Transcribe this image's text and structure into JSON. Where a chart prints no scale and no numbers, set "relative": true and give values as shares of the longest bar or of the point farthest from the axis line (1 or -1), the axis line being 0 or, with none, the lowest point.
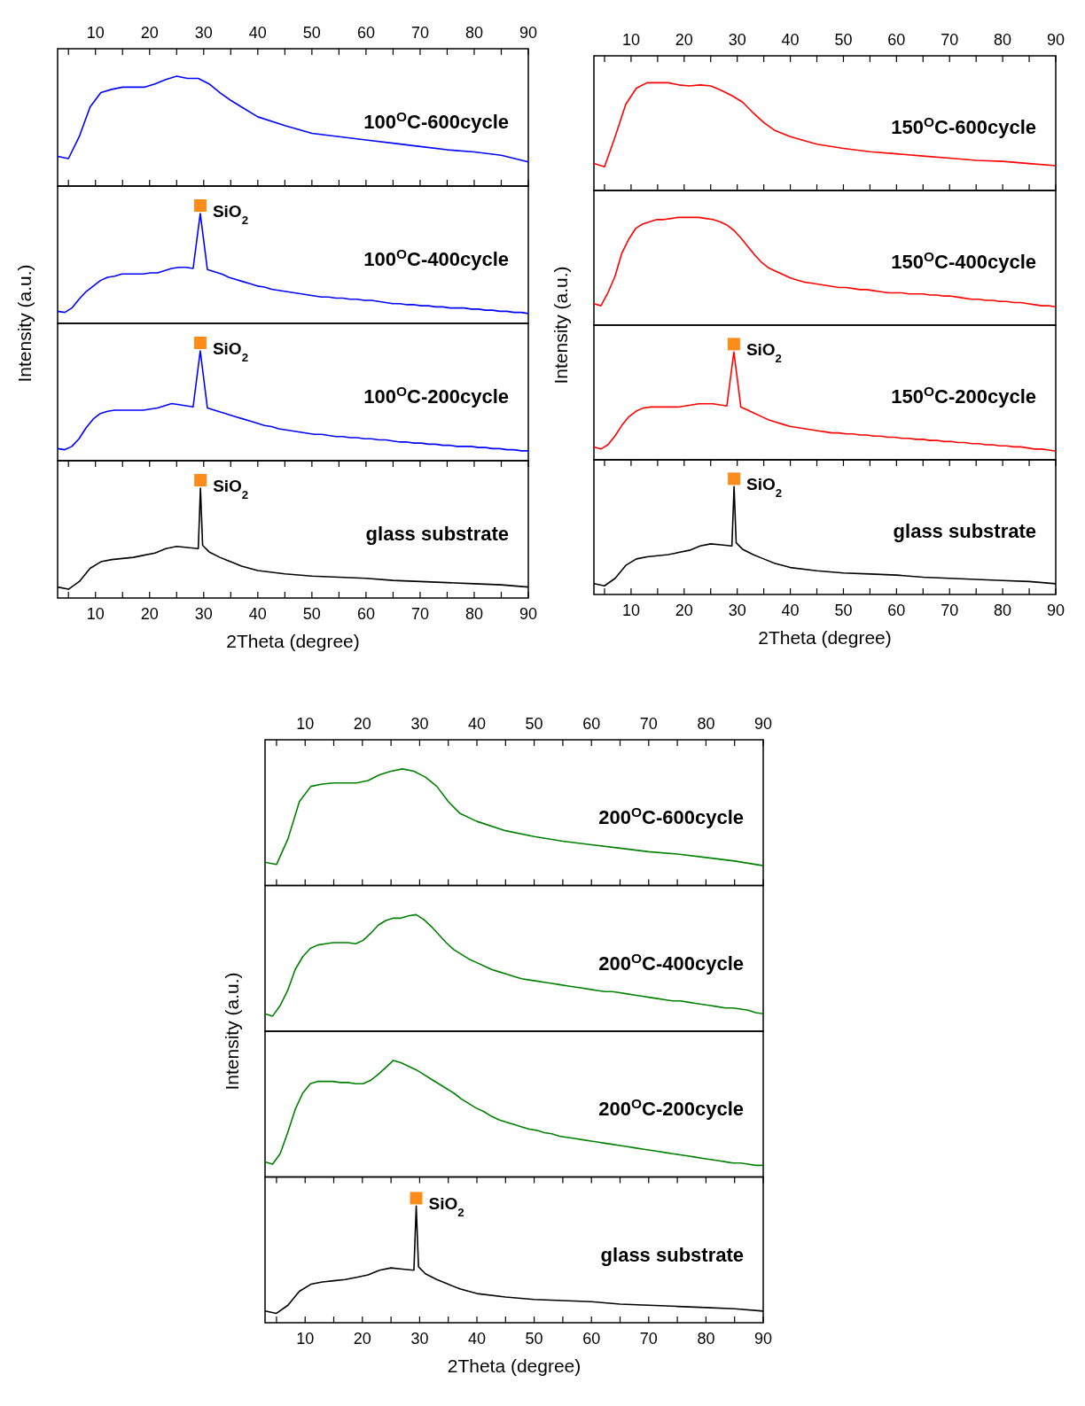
{
  "chart_data": [
    {
      "type": "line",
      "relative": true,
      "xlim": [
        3,
        90
      ],
      "xticks": [
        {
          "value": 5,
          "label": null
        },
        10,
        {
          "value": 15,
          "label": null
        },
        20,
        {
          "value": 25,
          "label": null
        },
        30,
        {
          "value": 35,
          "label": null
        },
        40,
        {
          "value": 45,
          "label": null
        },
        50,
        {
          "value": 55,
          "label": null
        },
        60,
        {
          "value": 65,
          "label": null
        },
        70,
        {
          "value": 75,
          "label": null
        },
        80,
        {
          "value": 85,
          "label": null
        },
        90
      ],
      "x": [
        3,
        5,
        7,
        9,
        11,
        13,
        15,
        17,
        19,
        21,
        23,
        25,
        27,
        29,
        31,
        33,
        35,
        37,
        40,
        45,
        50,
        55,
        60,
        65,
        70,
        75,
        80,
        85,
        90
      ],
      "series": [
        {
          "name": "100$^{O}$C-600cycle",
          "color": "#0000ff",
          "values": [
            0.27,
            0.25,
            0.45,
            0.72,
            0.85,
            0.88,
            0.9,
            0.9,
            0.9,
            0.93,
            0.97,
            1.0,
            0.98,
            0.98,
            0.93,
            0.85,
            0.78,
            0.72,
            0.63,
            0.55,
            0.48,
            0.45,
            0.42,
            0.39,
            0.36,
            0.33,
            0.31,
            0.28,
            0.22
          ]
        }
      ]
    },
    {
      "type": "line",
      "relative": true,
      "ylabel": "Intensity (a.u.)",
      "categories": [
        null,
        null,
        null,
        null,
        null,
        null,
        null,
        null,
        null,
        null,
        null,
        null,
        null,
        null,
        null,
        null,
        null,
        null,
        null,
        null,
        null,
        null,
        null,
        null,
        null,
        null,
        null,
        null,
        null,
        null,
        null,
        null,
        null,
        null,
        null,
        null,
        null,
        null,
        null,
        null,
        null,
        null,
        null,
        null,
        null,
        null,
        null,
        null,
        null,
        null,
        null,
        null,
        null,
        null,
        null,
        null,
        null,
        null,
        null,
        null,
        null,
        null,
        null,
        null,
        null,
        null,
        null
      ],
      "series": [
        {
          "name": "100$^{O}$C-400cycle",
          "color": "#0000ff",
          "values": [
            0.11,
            0.1,
            0.14,
            0.22,
            0.29,
            0.34,
            0.39,
            0.42,
            0.43,
            0.45,
            0.45,
            0.45,
            0.45,
            0.46,
            0.46,
            0.48,
            0.5,
            0.51,
            0.51,
            0.5,
            1,
            0.49,
            0.47,
            0.45,
            0.42,
            0.4,
            0.38,
            0.36,
            0.34,
            0.33,
            0.31,
            0.3,
            0.29,
            0.28,
            0.27,
            0.26,
            0.25,
            0.24,
            0.24,
            0.23,
            0.23,
            0.22,
            0.22,
            0.21,
            0.21,
            0.2,
            0.19,
            0.18,
            0.18,
            0.17,
            0.17,
            0.16,
            0.16,
            0.15,
            0.15,
            0.14,
            0.14,
            0.14,
            0.13,
            0.13,
            0.12,
            0.12,
            0.11,
            0.11,
            0.1,
            0.1,
            0.09
          ]
        }
      ],
      "annotations": [
        "SiO$_{2}$"
      ]
    },
    {
      "type": "line",
      "relative": true,
      "categories": [
        null,
        null,
        null,
        null,
        null,
        null,
        null,
        null,
        null,
        null,
        null,
        null,
        null,
        null,
        null,
        null,
        null,
        null,
        null,
        null,
        null,
        null,
        null,
        null,
        null,
        null,
        null,
        null,
        null,
        null,
        null,
        null,
        null,
        null,
        null,
        null,
        null,
        null,
        null,
        null,
        null,
        null,
        null,
        null,
        null,
        null,
        null,
        null,
        null,
        null,
        null,
        null,
        null,
        null,
        null,
        null,
        null,
        null,
        null,
        null,
        null,
        null,
        null,
        null,
        null,
        null,
        null
      ],
      "series": [
        {
          "name": "100$^{O}$C-200cycle",
          "color": "#0000ff",
          "values": [
            0.11,
            0.1,
            0.13,
            0.2,
            0.3,
            0.38,
            0.43,
            0.45,
            0.46,
            0.46,
            0.46,
            0.46,
            0.46,
            0.47,
            0.48,
            0.5,
            0.52,
            0.51,
            0.5,
            0.49,
            1,
            0.48,
            0.46,
            0.44,
            0.42,
            0.4,
            0.38,
            0.36,
            0.34,
            0.32,
            0.31,
            0.29,
            0.28,
            0.27,
            0.26,
            0.25,
            0.24,
            0.24,
            0.23,
            0.22,
            0.22,
            0.21,
            0.21,
            0.2,
            0.2,
            0.19,
            0.19,
            0.18,
            0.17,
            0.17,
            0.16,
            0.16,
            0.15,
            0.15,
            0.14,
            0.14,
            0.13,
            0.13,
            0.13,
            0.12,
            0.12,
            0.11,
            0.11,
            0.1,
            0.1,
            0.09,
            0.09
          ]
        }
      ],
      "annotations": [
        "SiO$_{2}$"
      ]
    },
    {
      "type": "line",
      "relative": true,
      "xlim": [
        3,
        90
      ],
      "xticks": [
        {
          "value": 5,
          "label": null
        },
        10,
        {
          "value": 15,
          "label": null
        },
        20,
        {
          "value": 25,
          "label": null
        },
        30,
        {
          "value": 35,
          "label": null
        },
        40,
        {
          "value": 45,
          "label": null
        },
        50,
        {
          "value": 55,
          "label": null
        },
        60,
        {
          "value": 65,
          "label": null
        },
        70,
        {
          "value": 75,
          "label": null
        },
        80,
        {
          "value": 85,
          "label": null
        },
        90
      ],
      "xlabel": "2Theta (degree)",
      "x": [
        3,
        5,
        7,
        9,
        11,
        13,
        15,
        17,
        19,
        21,
        23,
        25,
        27,
        29,
        29.4,
        29.8,
        31,
        33,
        35,
        37,
        40,
        45,
        50,
        55,
        60,
        65,
        70,
        75,
        80,
        85,
        90
      ],
      "series": [
        {
          "name": "glass substrate",
          "color": "#000000",
          "values": [
            0.1,
            0.08,
            0.15,
            0.27,
            0.33,
            0.35,
            0.36,
            0.37,
            0.39,
            0.41,
            0.45,
            0.47,
            0.46,
            0.45,
            1,
            0.48,
            0.42,
            0.37,
            0.33,
            0.29,
            0.25,
            0.22,
            0.2,
            0.19,
            0.18,
            0.16,
            0.15,
            0.14,
            0.13,
            0.12,
            0.1
          ]
        }
      ],
      "annotations": [
        "SiO$_{2}$"
      ]
    },
    {
      "type": "line",
      "relative": true,
      "xlim": [
        3,
        90
      ],
      "xticks": [
        {
          "value": 5,
          "label": null
        },
        10,
        {
          "value": 15,
          "label": null
        },
        20,
        {
          "value": 25,
          "label": null
        },
        30,
        {
          "value": 35,
          "label": null
        },
        40,
        {
          "value": 45,
          "label": null
        },
        50,
        {
          "value": 55,
          "label": null
        },
        60,
        {
          "value": 65,
          "label": null
        },
        70,
        {
          "value": 75,
          "label": null
        },
        80,
        {
          "value": 85,
          "label": null
        },
        90
      ],
      "x": [
        3,
        5,
        7,
        9,
        11,
        13,
        15,
        17,
        19,
        21,
        23,
        25,
        27,
        29,
        31,
        33,
        35,
        37,
        40,
        45,
        50,
        55,
        60,
        65,
        70,
        75,
        80,
        85,
        90
      ],
      "series": [
        {
          "name": "150$^{O}$C-600cycle",
          "color": "#ff0000",
          "values": [
            0.25,
            0.22,
            0.5,
            0.8,
            0.95,
            1,
            1,
            1,
            0.98,
            0.97,
            0.98,
            0.97,
            0.93,
            0.88,
            0.82,
            0.72,
            0.63,
            0.56,
            0.5,
            0.43,
            0.39,
            0.36,
            0.34,
            0.32,
            0.3,
            0.28,
            0.27,
            0.25,
            0.23
          ]
        }
      ]
    },
    {
      "type": "line",
      "relative": true,
      "ylabel": "Intensity (a.u.)",
      "categories": [
        null,
        null,
        null,
        null,
        null,
        null,
        null,
        null,
        null,
        null,
        null,
        null,
        null,
        null,
        null,
        null,
        null,
        null,
        null,
        null,
        null,
        null,
        null,
        null,
        null,
        null,
        null,
        null,
        null,
        null,
        null,
        null,
        null,
        null,
        null,
        null,
        null,
        null,
        null,
        null,
        null,
        null,
        null,
        null,
        null,
        null,
        null,
        null,
        null,
        null,
        null,
        null,
        null,
        null,
        null,
        null,
        null,
        null,
        null,
        null,
        null,
        null,
        null,
        null,
        null,
        null,
        null
      ],
      "series": [
        {
          "name": "150$^{O}$C-400cycle",
          "color": "#ff0000",
          "values": [
            0.2,
            0.18,
            0.3,
            0.45,
            0.67,
            0.8,
            0.9,
            0.94,
            0.96,
            0.98,
            0.98,
            0.99,
            1,
            1,
            1,
            1,
            0.99,
            0.98,
            0.96,
            0.93,
            0.88,
            0.81,
            0.73,
            0.65,
            0.58,
            0.53,
            0.5,
            0.47,
            0.44,
            0.42,
            0.4,
            0.39,
            0.38,
            0.37,
            0.36,
            0.35,
            0.35,
            0.34,
            0.33,
            0.33,
            0.32,
            0.31,
            0.3,
            0.3,
            0.3,
            0.29,
            0.29,
            0.29,
            0.28,
            0.28,
            0.27,
            0.27,
            0.26,
            0.25,
            0.24,
            0.24,
            0.23,
            0.23,
            0.22,
            0.22,
            0.21,
            0.21,
            0.2,
            0.19,
            0.18,
            0.18,
            0.17
          ]
        }
      ]
    },
    {
      "type": "line",
      "relative": true,
      "categories": [
        null,
        null,
        null,
        null,
        null,
        null,
        null,
        null,
        null,
        null,
        null,
        null,
        null,
        null,
        null,
        null,
        null,
        null,
        null,
        null,
        null,
        null,
        null,
        null,
        null,
        null,
        null,
        null,
        null,
        null,
        null,
        null,
        null,
        null,
        null,
        null,
        null,
        null,
        null,
        null,
        null,
        null,
        null,
        null,
        null,
        null,
        null,
        null,
        null,
        null,
        null,
        null,
        null,
        null,
        null,
        null,
        null,
        null,
        null,
        null,
        null,
        null,
        null,
        null,
        null,
        null,
        null
      ],
      "series": [
        {
          "name": "150$^{O}$C-200cycle",
          "color": "#ff0000",
          "values": [
            0.12,
            0.1,
            0.14,
            0.22,
            0.32,
            0.4,
            0.45,
            0.48,
            0.49,
            0.49,
            0.49,
            0.49,
            0.49,
            0.5,
            0.51,
            0.52,
            0.52,
            0.52,
            0.51,
            0.5,
            1,
            0.49,
            0.46,
            0.43,
            0.4,
            0.37,
            0.35,
            0.33,
            0.31,
            0.3,
            0.29,
            0.28,
            0.27,
            0.26,
            0.25,
            0.25,
            0.24,
            0.24,
            0.23,
            0.23,
            0.22,
            0.22,
            0.21,
            0.21,
            0.2,
            0.2,
            0.19,
            0.19,
            0.18,
            0.18,
            0.17,
            0.17,
            0.16,
            0.16,
            0.15,
            0.15,
            0.14,
            0.14,
            0.13,
            0.13,
            0.12,
            0.12,
            0.11,
            0.1,
            0.1,
            0.09,
            0.08
          ]
        }
      ],
      "annotations": [
        "SiO$_{2}$"
      ]
    },
    {
      "type": "line",
      "relative": true,
      "xlim": [
        3,
        90
      ],
      "xticks": [
        {
          "value": 5,
          "label": null
        },
        10,
        {
          "value": 15,
          "label": null
        },
        20,
        {
          "value": 25,
          "label": null
        },
        30,
        {
          "value": 35,
          "label": null
        },
        40,
        {
          "value": 45,
          "label": null
        },
        50,
        {
          "value": 55,
          "label": null
        },
        60,
        {
          "value": 65,
          "label": null
        },
        70,
        {
          "value": 75,
          "label": null
        },
        80,
        {
          "value": 85,
          "label": null
        },
        90
      ],
      "xlabel": "2Theta (degree)",
      "x": [
        3,
        5,
        7,
        9,
        11,
        13,
        15,
        17,
        19,
        21,
        23,
        25,
        27,
        29,
        29.4,
        29.8,
        31,
        33,
        35,
        37,
        40,
        45,
        50,
        55,
        60,
        65,
        70,
        75,
        80,
        85,
        90
      ],
      "series": [
        {
          "name": "glass substrate",
          "color": "#000000",
          "values": [
            0.1,
            0.08,
            0.15,
            0.27,
            0.33,
            0.35,
            0.36,
            0.37,
            0.39,
            0.41,
            0.45,
            0.47,
            0.46,
            0.45,
            1,
            0.48,
            0.42,
            0.37,
            0.33,
            0.29,
            0.25,
            0.22,
            0.2,
            0.19,
            0.18,
            0.16,
            0.15,
            0.14,
            0.13,
            0.12,
            0.1
          ]
        }
      ],
      "annotations": [
        "SiO$_{2}$"
      ]
    },
    {
      "type": "line",
      "relative": true,
      "xlim": [
        3,
        90
      ],
      "xticks": [
        {
          "value": 5,
          "label": null
        },
        10,
        {
          "value": 15,
          "label": null
        },
        20,
        {
          "value": 25,
          "label": null
        },
        30,
        {
          "value": 35,
          "label": null
        },
        40,
        {
          "value": 45,
          "label": null
        },
        50,
        {
          "value": 55,
          "label": null
        },
        60,
        {
          "value": 65,
          "label": null
        },
        70,
        {
          "value": 75,
          "label": null
        },
        80,
        {
          "value": 85,
          "label": null
        },
        90
      ],
      "x": [
        3,
        5,
        7,
        9,
        11,
        13,
        15,
        17,
        19,
        21,
        23,
        25,
        27,
        29,
        31,
        33,
        35,
        37,
        40,
        45,
        50,
        55,
        60,
        65,
        70,
        75,
        80,
        85,
        90
      ],
      "series": [
        {
          "name": "200$^{O}$C-600cycle",
          "color": "#008000",
          "values": [
            0.2,
            0.18,
            0.4,
            0.72,
            0.85,
            0.87,
            0.88,
            0.88,
            0.88,
            0.9,
            0.95,
            0.98,
            1,
            0.98,
            0.93,
            0.85,
            0.72,
            0.62,
            0.55,
            0.47,
            0.42,
            0.38,
            0.35,
            0.32,
            0.29,
            0.27,
            0.24,
            0.21,
            0.17
          ]
        }
      ]
    },
    {
      "type": "line",
      "relative": true,
      "ylabel": "Intensity (a.u.)",
      "categories": [
        null,
        null,
        null,
        null,
        null,
        null,
        null,
        null,
        null,
        null,
        null,
        null,
        null,
        null,
        null,
        null,
        null,
        null,
        null,
        null,
        null,
        null,
        null,
        null,
        null,
        null,
        null,
        null,
        null,
        null,
        null,
        null,
        null,
        null,
        null,
        null,
        null,
        null,
        null,
        null,
        null,
        null,
        null,
        null,
        null,
        null,
        null,
        null,
        null,
        null,
        null,
        null,
        null,
        null,
        null,
        null,
        null,
        null,
        null,
        null,
        null,
        null,
        null,
        null,
        null,
        null,
        null
      ],
      "series": [
        {
          "name": "200$^{O}$C-400cycle",
          "color": "#008000",
          "values": [
            0.15,
            0.13,
            0.22,
            0.35,
            0.53,
            0.64,
            0.71,
            0.74,
            0.75,
            0.76,
            0.76,
            0.76,
            0.75,
            0.78,
            0.84,
            0.91,
            0.95,
            0.97,
            0.97,
            0.99,
            1,
            0.96,
            0.9,
            0.83,
            0.76,
            0.7,
            0.66,
            0.62,
            0.59,
            0.56,
            0.53,
            0.51,
            0.49,
            0.47,
            0.45,
            0.44,
            0.43,
            0.42,
            0.41,
            0.4,
            0.39,
            0.38,
            0.37,
            0.36,
            0.35,
            0.34,
            0.34,
            0.33,
            0.32,
            0.31,
            0.3,
            0.29,
            0.28,
            0.27,
            0.26,
            0.26,
            0.25,
            0.24,
            0.23,
            0.22,
            0.21,
            0.2,
            0.2,
            0.19,
            0.18,
            0.16,
            0.15
          ]
        }
      ]
    },
    {
      "type": "line",
      "relative": true,
      "categories": [
        null,
        null,
        null,
        null,
        null,
        null,
        null,
        null,
        null,
        null,
        null,
        null,
        null,
        null,
        null,
        null,
        null,
        null,
        null,
        null,
        null,
        null,
        null,
        null,
        null,
        null,
        null,
        null,
        null,
        null,
        null,
        null,
        null,
        null,
        null,
        null,
        null,
        null,
        null,
        null,
        null,
        null,
        null,
        null,
        null,
        null,
        null,
        null,
        null,
        null,
        null,
        null,
        null,
        null,
        null,
        null,
        null,
        null,
        null,
        null,
        null,
        null,
        null,
        null,
        null,
        null,
        null
      ],
      "series": [
        {
          "name": "200$^{O}$C-200cycle",
          "color": "#008000",
          "values": [
            0.13,
            0.11,
            0.2,
            0.38,
            0.58,
            0.72,
            0.8,
            0.82,
            0.82,
            0.82,
            0.81,
            0.81,
            0.8,
            0.8,
            0.83,
            0.88,
            0.94,
            1,
            0.98,
            0.95,
            0.92,
            0.88,
            0.84,
            0.8,
            0.76,
            0.72,
            0.67,
            0.63,
            0.59,
            0.56,
            0.52,
            0.49,
            0.47,
            0.45,
            0.43,
            0.41,
            0.4,
            0.38,
            0.37,
            0.35,
            0.34,
            0.33,
            0.32,
            0.31,
            0.3,
            0.29,
            0.28,
            0.27,
            0.26,
            0.25,
            0.24,
            0.23,
            0.22,
            0.21,
            0.2,
            0.19,
            0.18,
            0.17,
            0.16,
            0.15,
            0.14,
            0.13,
            0.12,
            0.12,
            0.11,
            0.1,
            0.1
          ]
        }
      ]
    },
    {
      "type": "line",
      "relative": true,
      "xlim": [
        3,
        90
      ],
      "xticks": [
        {
          "value": 5,
          "label": null
        },
        10,
        {
          "value": 15,
          "label": null
        },
        20,
        {
          "value": 25,
          "label": null
        },
        30,
        {
          "value": 35,
          "label": null
        },
        40,
        {
          "value": 45,
          "label": null
        },
        50,
        {
          "value": 55,
          "label": null
        },
        60,
        {
          "value": 65,
          "label": null
        },
        70,
        {
          "value": 75,
          "label": null
        },
        80,
        {
          "value": 85,
          "label": null
        },
        90
      ],
      "xlabel": "2Theta (degree)",
      "x": [
        3,
        5,
        7,
        9,
        11,
        13,
        15,
        17,
        19,
        21,
        23,
        25,
        27,
        29,
        29.4,
        29.8,
        31,
        33,
        35,
        37,
        40,
        45,
        50,
        55,
        60,
        65,
        70,
        75,
        80,
        85,
        90
      ],
      "series": [
        {
          "name": "glass substrate",
          "color": "#000000",
          "values": [
            0.1,
            0.08,
            0.15,
            0.27,
            0.33,
            0.35,
            0.36,
            0.37,
            0.39,
            0.41,
            0.45,
            0.47,
            0.46,
            0.45,
            1,
            0.48,
            0.42,
            0.37,
            0.33,
            0.29,
            0.25,
            0.22,
            0.2,
            0.19,
            0.18,
            0.16,
            0.15,
            0.14,
            0.13,
            0.12,
            0.1
          ]
        }
      ],
      "annotations": [
        "SiO$_{2}$"
      ]
    }
  ]
}
